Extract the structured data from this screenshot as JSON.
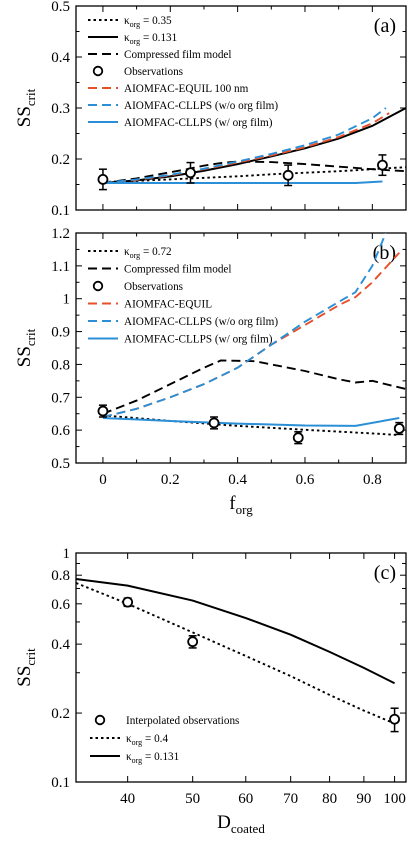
{
  "chart_data": [
    {
      "panel_label": "(a)",
      "type": "line",
      "xlim": [
        -0.08,
        0.9
      ],
      "ylim": [
        0.1,
        0.5
      ],
      "xticks": [
        0,
        0.2,
        0.4,
        0.6,
        0.8
      ],
      "xtick_labels": [],
      "yticks": [
        0.1,
        0.2,
        0.3,
        0.4,
        0.5
      ],
      "ytick_labels": [
        "0.1",
        "0.2",
        "0.3",
        "0.4",
        "0.5"
      ],
      "ylabel_main": "SS",
      "ylabel_sub": "crit",
      "xlabel_main": "",
      "xlabel_sub": "",
      "legend_position": "top-left",
      "series": [
        {
          "name_main": "κ",
          "name_sub": "org",
          "name_tail": " = 0.35",
          "style": "dotted",
          "color": "#000000",
          "x": [
            0,
            0.1,
            0.2,
            0.3,
            0.4,
            0.5,
            0.6,
            0.7,
            0.8,
            0.9
          ],
          "y": [
            0.155,
            0.157,
            0.16,
            0.163,
            0.166,
            0.17,
            0.173,
            0.176,
            0.18,
            0.184
          ]
        },
        {
          "name_main": "κ",
          "name_sub": "org",
          "name_tail": " = 0.131",
          "style": "solid",
          "color": "#000000",
          "x": [
            0,
            0.1,
            0.2,
            0.3,
            0.4,
            0.5,
            0.6,
            0.7,
            0.8,
            0.9
          ],
          "y": [
            0.153,
            0.158,
            0.166,
            0.177,
            0.19,
            0.205,
            0.221,
            0.24,
            0.265,
            0.3
          ]
        },
        {
          "name_main": "Compressed film model",
          "name_sub": "",
          "name_tail": "",
          "style": "dashed",
          "color": "#000000",
          "x": [
            0,
            0.1,
            0.2,
            0.25,
            0.3,
            0.35,
            0.4,
            0.5,
            0.6,
            0.7,
            0.8,
            0.9
          ],
          "y": [
            0.153,
            0.162,
            0.174,
            0.18,
            0.187,
            0.192,
            0.195,
            0.194,
            0.19,
            0.185,
            0.18,
            0.176
          ]
        },
        {
          "name_main": "AIOMFAC-EQUIL 100 nm",
          "name_sub": "",
          "name_tail": "",
          "style": "dashed",
          "color": "#e8502a",
          "x": [
            0,
            0.1,
            0.2,
            0.3,
            0.4,
            0.5,
            0.6,
            0.7,
            0.8,
            0.85
          ],
          "y": [
            0.153,
            0.159,
            0.168,
            0.18,
            0.193,
            0.207,
            0.223,
            0.243,
            0.27,
            0.29
          ]
        },
        {
          "name_main": "AIOMFAC-CLLPS (w/o org film)",
          "name_sub": "",
          "name_tail": "",
          "style": "dashed",
          "color": "#2a8fd6",
          "x": [
            0,
            0.1,
            0.2,
            0.3,
            0.4,
            0.5,
            0.6,
            0.7,
            0.8,
            0.84
          ],
          "y": [
            0.153,
            0.16,
            0.169,
            0.181,
            0.195,
            0.21,
            0.227,
            0.248,
            0.28,
            0.3
          ]
        },
        {
          "name_main": "AIOMFAC-CLLPS (w/ org film)",
          "name_sub": "",
          "name_tail": "",
          "style": "solid",
          "color": "#2a8fd6",
          "x": [
            0,
            0.2,
            0.4,
            0.6,
            0.75,
            0.83
          ],
          "y": [
            0.153,
            0.153,
            0.153,
            0.153,
            0.153,
            0.156
          ]
        }
      ],
      "observations": {
        "name_main": "Observations",
        "x": [
          0,
          0.26,
          0.55,
          0.83
        ],
        "y": [
          0.16,
          0.173,
          0.168,
          0.188
        ],
        "err": [
          0.02,
          0.02,
          0.02,
          0.02
        ]
      }
    },
    {
      "panel_label": "(b)",
      "type": "line",
      "xlim": [
        -0.08,
        0.9
      ],
      "ylim": [
        0.5,
        1.2
      ],
      "xticks": [
        0,
        0.2,
        0.4,
        0.6,
        0.8
      ],
      "xtick_labels": [
        "0",
        "0.2",
        "0.4",
        "0.6",
        "0.8"
      ],
      "yticks": [
        0.5,
        0.6,
        0.7,
        0.8,
        0.9,
        1.0,
        1.1,
        1.2
      ],
      "ytick_labels": [
        "0.5",
        "0.6",
        "0.7",
        "0.8",
        "0.9",
        "1",
        "1.1",
        "1.2"
      ],
      "ylabel_main": "SS",
      "ylabel_sub": "crit",
      "xlabel_main": "f",
      "xlabel_sub": "org",
      "legend_position": "top-left",
      "series": [
        {
          "name_main": "κ",
          "name_sub": "org",
          "name_tail": " = 0.72",
          "style": "dotted",
          "color": "#000000",
          "x": [
            0,
            0.2,
            0.4,
            0.6,
            0.8,
            0.88
          ],
          "y": [
            0.645,
            0.628,
            0.613,
            0.601,
            0.59,
            0.585
          ]
        },
        {
          "name_main": "Compressed film model",
          "name_sub": "",
          "name_tail": "",
          "style": "dashed",
          "color": "#000000",
          "x": [
            0,
            0.1,
            0.2,
            0.3,
            0.35,
            0.45,
            0.5,
            0.6,
            0.7,
            0.75,
            0.8,
            0.9
          ],
          "y": [
            0.65,
            0.69,
            0.74,
            0.79,
            0.812,
            0.81,
            0.8,
            0.78,
            0.755,
            0.745,
            0.75,
            0.725
          ]
        },
        {
          "name_main": "AIOMFAC-EQUIL",
          "name_sub": "",
          "name_tail": "",
          "style": "dashed",
          "color": "#e8502a",
          "x": [
            0,
            0.1,
            0.2,
            0.3,
            0.4,
            0.5,
            0.6,
            0.7,
            0.75,
            0.8,
            0.88
          ],
          "y": [
            0.64,
            0.665,
            0.7,
            0.74,
            0.79,
            0.86,
            0.92,
            0.98,
            1.005,
            1.05,
            1.14
          ]
        },
        {
          "name_main": "AIOMFAC-CLLPS (w/o org film)",
          "name_sub": "",
          "name_tail": "",
          "style": "dashed",
          "color": "#2a8fd6",
          "x": [
            0,
            0.1,
            0.2,
            0.3,
            0.4,
            0.5,
            0.6,
            0.7,
            0.75,
            0.8,
            0.84
          ],
          "y": [
            0.64,
            0.665,
            0.7,
            0.74,
            0.79,
            0.86,
            0.93,
            0.99,
            1.02,
            1.1,
            1.2
          ]
        },
        {
          "name_main": "AIOMFAC-CLLPS (w/ org film)",
          "name_sub": "",
          "name_tail": "",
          "style": "solid",
          "color": "#2a8fd6",
          "x": [
            0,
            0.2,
            0.4,
            0.6,
            0.75,
            0.88
          ],
          "y": [
            0.637,
            0.628,
            0.62,
            0.614,
            0.613,
            0.637
          ]
        }
      ],
      "observations": {
        "name_main": "Observations",
        "x": [
          0,
          0.33,
          0.58,
          0.88
        ],
        "y": [
          0.658,
          0.622,
          0.577,
          0.605
        ],
        "err": [
          0.018,
          0.018,
          0.018,
          0.018
        ]
      }
    },
    {
      "panel_label": "(c)",
      "type": "line",
      "xscale": "log",
      "yscale": "log",
      "xlim": [
        33.5,
        104
      ],
      "ylim": [
        0.1,
        1.0
      ],
      "xticks": [
        40,
        50,
        60,
        70,
        80,
        90,
        100
      ],
      "xtick_labels": [
        "40",
        "50",
        "60",
        "70",
        "80",
        "90",
        "100"
      ],
      "yticks": [
        0.1,
        0.2,
        0.4,
        0.6,
        0.8,
        1.0
      ],
      "ytick_labels": [
        "0.1",
        "0.2",
        "0.4",
        "0.6",
        "0.8",
        "1"
      ],
      "yminor_ticks": [
        0.3,
        0.5,
        0.7,
        0.9
      ],
      "ylabel_main": "SS",
      "ylabel_sub": "crit",
      "xlabel_main": "D",
      "xlabel_sub": "coated",
      "legend_position": "bottom-left",
      "series": [
        {
          "name_main": "κ",
          "name_sub": "org",
          "name_tail": " = 0.4",
          "style": "dotted",
          "color": "#000000",
          "x": [
            33.5,
            40,
            50,
            60,
            70,
            80,
            90,
            100
          ],
          "y": [
            0.74,
            0.6,
            0.45,
            0.355,
            0.29,
            0.24,
            0.205,
            0.18
          ]
        },
        {
          "name_main": "κ",
          "name_sub": "org",
          "name_tail": " = 0.131",
          "style": "solid",
          "color": "#000000",
          "x": [
            33.5,
            40,
            50,
            60,
            70,
            80,
            90,
            100
          ],
          "y": [
            0.77,
            0.72,
            0.62,
            0.52,
            0.44,
            0.37,
            0.315,
            0.27
          ]
        }
      ],
      "observations": {
        "name_main": "Interpolated observations",
        "x": [
          40,
          50,
          100
        ],
        "y": [
          0.61,
          0.41,
          0.188
        ],
        "err": [
          0.025,
          0.025,
          0.022
        ]
      }
    }
  ]
}
